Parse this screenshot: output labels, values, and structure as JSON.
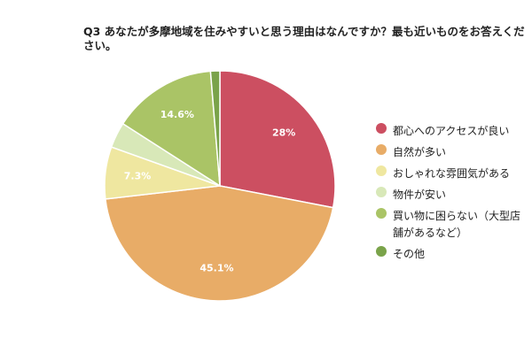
{
  "chart_data": {
    "type": "pie",
    "title": "Q3 あなたが多摩地域を住みやすいと思う理由はなんですか？最も近いものをお答えください。",
    "categories": [
      "都心へのアクセスが良い",
      "自然が多い",
      "おしゃれな雰囲気がある",
      "物件が安い",
      "買い物に困らない（大型店舗があるなど）",
      "その他"
    ],
    "values": [
      28,
      45.1,
      7.3,
      3.6,
      14.6,
      1.3
    ],
    "data_labels": [
      "28%",
      "45.1%",
      "7.3%",
      "",
      "14.6%",
      ""
    ],
    "colors": [
      "#cc4f61",
      "#e8ac67",
      "#efe7a0",
      "#d8e8b8",
      "#aac466",
      "#7aa34a"
    ],
    "legend_position": "right"
  }
}
